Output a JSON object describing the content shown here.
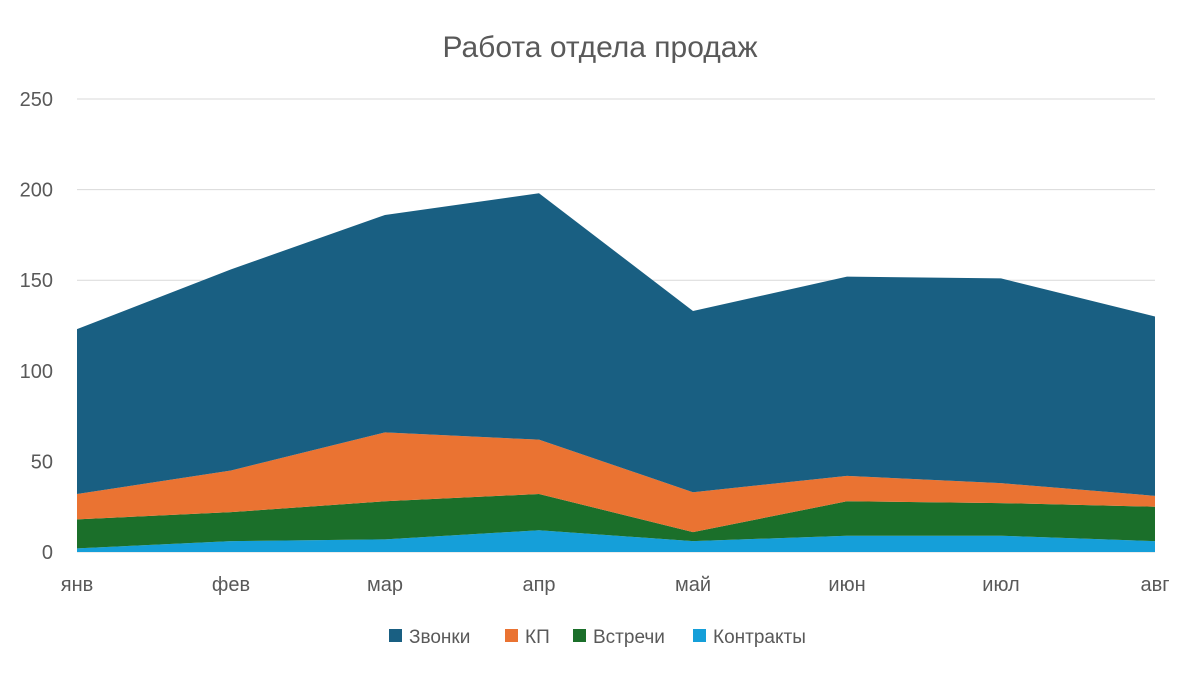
{
  "chart_data": {
    "type": "area",
    "stacked": true,
    "title": "Работа отдела продаж",
    "xlabel": "",
    "ylabel": "",
    "categories": [
      "янв",
      "фев",
      "мар",
      "апр",
      "май",
      "июн",
      "июл",
      "авг"
    ],
    "ylim": [
      0,
      250
    ],
    "yticks": [
      0,
      50,
      100,
      150,
      200,
      250
    ],
    "grid": true,
    "legend_position": "bottom",
    "series": [
      {
        "name": "Контракты",
        "color": "#159fd9",
        "values": [
          2,
          6,
          7,
          12,
          6,
          9,
          9,
          6
        ]
      },
      {
        "name": "Встречи",
        "color": "#1b6f2a",
        "values": [
          16,
          16,
          21,
          20,
          5,
          19,
          18,
          19
        ]
      },
      {
        "name": "КП",
        "color": "#ea7332",
        "values": [
          14,
          23,
          38,
          30,
          22,
          14,
          11,
          6
        ]
      },
      {
        "name": "Звонки",
        "color": "#195f82",
        "values": [
          91,
          111,
          120,
          136,
          100,
          110,
          113,
          99
        ]
      }
    ],
    "legend_order": [
      "Звонки",
      "КП",
      "Встречи",
      "Контракты"
    ]
  }
}
